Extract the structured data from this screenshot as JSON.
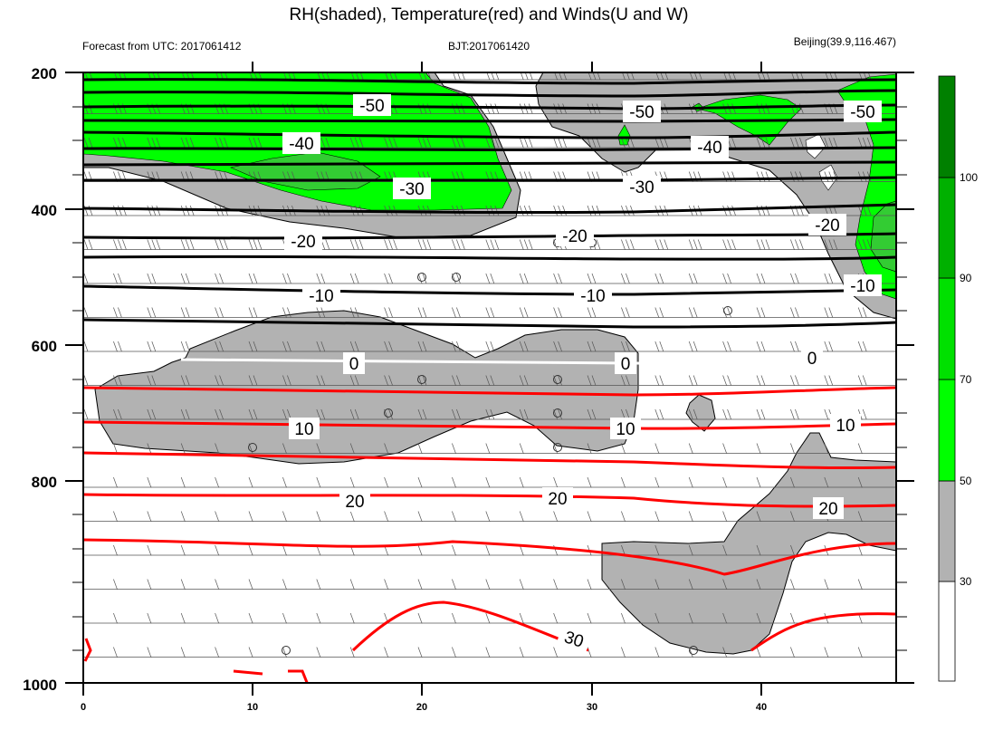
{
  "chart_data": {
    "type": "contour",
    "title": "RH(shaded), Temperature(red) and Winds(U and W)",
    "subtitle_left": "Forecast from UTC: 2017061412",
    "subtitle_center": "BJT:2017061420",
    "subtitle_right": "Beijing(39.9,116.467)",
    "x_ticks": [
      "0",
      "10",
      "20",
      "30",
      "40"
    ],
    "x_range": [
      0,
      48
    ],
    "y_ticks": [
      "200",
      "400",
      "600",
      "800",
      "1000"
    ],
    "y_range": [
      200,
      1000
    ],
    "colorbar_ticks": [
      "30",
      "50",
      "70",
      "90",
      "100"
    ],
    "colorbar_colors": [
      "#ffffff",
      "#b2b2b2",
      "#00ff00",
      "#00e000",
      "#00b000",
      "#008000"
    ],
    "colors": {
      "rh_30_50": "#b2b2b2",
      "rh_50_70": "#00ff00",
      "rh_70_90": "#33cc33",
      "cold_isotherm": "#000000",
      "zero_isotherm": "#ffffff",
      "warm_isotherm": "#ff0000"
    },
    "isotherms": [
      {
        "level": "-50",
        "y_pressure": 290,
        "labels": [
          {
            "x": 16.5,
            "y": 245,
            "text": "-50"
          },
          {
            "x": 33,
            "y": 250,
            "text": "-50"
          },
          {
            "x": 46,
            "y": 250,
            "text": "-50"
          }
        ]
      },
      {
        "level": "-40",
        "y_pressure": 315,
        "labels": [
          {
            "x": 13,
            "y": 305,
            "text": "-40"
          },
          {
            "x": 37,
            "y": 310,
            "text": "-40"
          }
        ]
      },
      {
        "level": "-30",
        "y_pressure": 360,
        "labels": [
          {
            "x": 19.5,
            "y": 365,
            "text": "-30"
          },
          {
            "x": 32,
            "y": 365,
            "text": "-30"
          }
        ]
      },
      {
        "level": "-20",
        "y_pressure": 440,
        "labels": [
          {
            "x": 14,
            "y": 445,
            "text": "-20"
          },
          {
            "x": 29,
            "y": 440,
            "text": "-20"
          },
          {
            "x": 44,
            "y": 425,
            "text": "-20"
          }
        ]
      },
      {
        "level": "-10",
        "y_pressure": 530,
        "labels": [
          {
            "x": 14,
            "y": 530,
            "text": "-10"
          },
          {
            "x": 30.5,
            "y": 530,
            "text": "-10"
          },
          {
            "x": 46,
            "y": 510,
            "text": "-10"
          }
        ]
      },
      {
        "level": "0",
        "y_pressure": 625,
        "labels": [
          {
            "x": 16,
            "y": 627,
            "text": "0"
          },
          {
            "x": 32,
            "y": 627,
            "text": "0"
          },
          {
            "x": 43,
            "y": 617,
            "text": "0"
          }
        ]
      },
      {
        "level": "10",
        "y_pressure": 725,
        "labels": [
          {
            "x": 13,
            "y": 727,
            "text": "10"
          },
          {
            "x": 32,
            "y": 727,
            "text": "10"
          },
          {
            "x": 45,
            "y": 718,
            "text": "10"
          }
        ]
      },
      {
        "level": "20",
        "y_pressure": 835,
        "labels": [
          {
            "x": 16,
            "y": 830,
            "text": "20"
          },
          {
            "x": 28,
            "y": 828,
            "text": "20"
          },
          {
            "x": 44,
            "y": 840,
            "text": "20"
          }
        ]
      },
      {
        "level": "30",
        "y_pressure": 965,
        "labels": [
          {
            "x": 29,
            "y": 965,
            "text": "30"
          }
        ]
      }
    ]
  }
}
